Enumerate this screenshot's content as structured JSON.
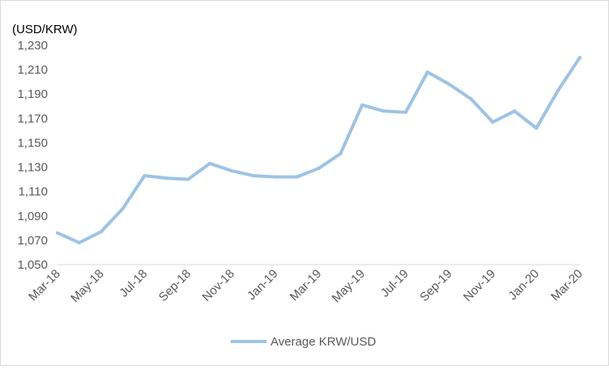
{
  "chart_data": {
    "type": "line",
    "title": "",
    "unit_label": "(USD/KRW)",
    "xlabel": "",
    "ylabel": "",
    "ylim": [
      1050,
      1230
    ],
    "yticks": [
      1050,
      1070,
      1090,
      1110,
      1130,
      1150,
      1170,
      1190,
      1210,
      1230
    ],
    "ytick_labels": [
      "1,050",
      "1,070",
      "1,090",
      "1,110",
      "1,130",
      "1,150",
      "1,170",
      "1,190",
      "1,210",
      "1,230"
    ],
    "x": [
      "Mar-18",
      "Apr-18",
      "May-18",
      "Jun-18",
      "Jul-18",
      "Aug-18",
      "Sep-18",
      "Oct-18",
      "Nov-18",
      "Dec-18",
      "Jan-19",
      "Feb-19",
      "Mar-19",
      "Apr-19",
      "May-19",
      "Jun-19",
      "Jul-19",
      "Aug-19",
      "Sep-19",
      "Oct-19",
      "Nov-19",
      "Dec-19",
      "Jan-20",
      "Feb-20",
      "Mar-20"
    ],
    "xtick_labels": [
      "Mar-18",
      "May-18",
      "Jul-18",
      "Sep-18",
      "Nov-18",
      "Jan-19",
      "Mar-19",
      "May-19",
      "Jul-19",
      "Sep-19",
      "Nov-19",
      "Jan-20",
      "Mar-20"
    ],
    "series": [
      {
        "name": "Average KRW/USD",
        "color": "#9dc3e6",
        "values": [
          1076,
          1068,
          1077,
          1096,
          1123,
          1121,
          1120,
          1133,
          1127,
          1123,
          1122,
          1122,
          1129,
          1141,
          1181,
          1176,
          1175,
          1208,
          1198,
          1186,
          1167,
          1176,
          1162,
          1193,
          1220
        ]
      }
    ],
    "grid": false,
    "legend_position": "bottom"
  }
}
